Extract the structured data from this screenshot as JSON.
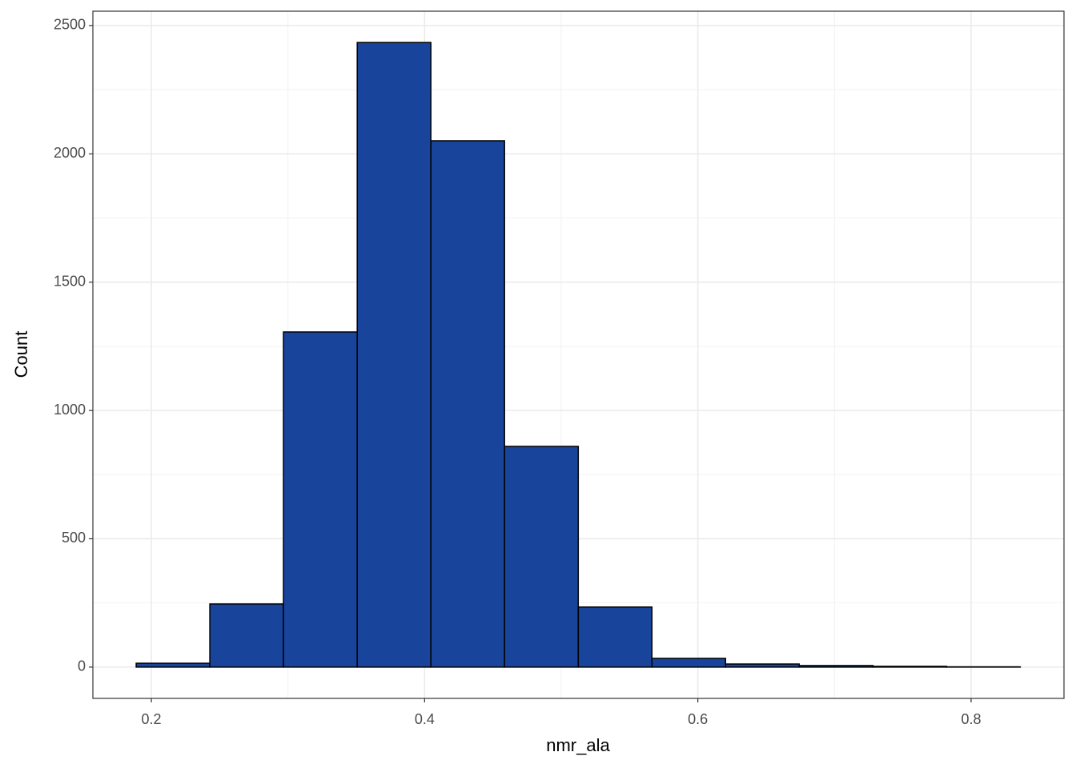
{
  "chart_data": {
    "type": "histogram",
    "x_label": "nmr_ala",
    "y_label": "Count",
    "bins": [
      0.1889,
      0.2428,
      0.2967,
      0.3507,
      0.4046,
      0.4585,
      0.5125,
      0.5664,
      0.6203,
      0.6742,
      0.7282,
      0.7821,
      0.836
    ],
    "values": [
      15,
      246,
      1306,
      2434,
      2051,
      860,
      234,
      34,
      12,
      6,
      3,
      1
    ],
    "color": "#19449b",
    "edge_color": "#000000",
    "xlim": [
      0.1572,
      0.868
    ],
    "ylim": [
      -122,
      2556
    ],
    "xticks": [
      0.2,
      0.4,
      0.6,
      0.8
    ],
    "yticks": [
      0,
      500,
      1000,
      1500,
      2000,
      2500
    ],
    "grid": true
  }
}
